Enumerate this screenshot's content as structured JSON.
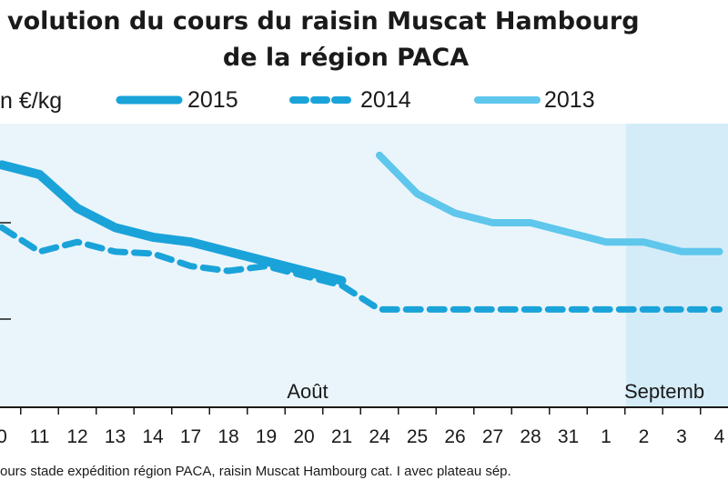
{
  "chart_data": {
    "type": "line",
    "title": "volution du cours du raisin Muscat Hambourg",
    "title_line2": "de la région PACA",
    "ylabel": "n €/kg",
    "source": "ours stade expédition région PACA, raisin Muscat Hambourg cat. I avec plateau sép.",
    "months": [
      "Août",
      "Septemb"
    ],
    "categories": [
      "0",
      "11",
      "12",
      "13",
      "14",
      "17",
      "18",
      "19",
      "20",
      "21",
      "24",
      "25",
      "26",
      "27",
      "28",
      "31",
      "1",
      "2",
      "3",
      "4"
    ],
    "grid": false,
    "legend_position": "top",
    "series": [
      {
        "name": "2015",
        "style": "solid-thick",
        "color": "#1aa3d9",
        "values": [
          2.6,
          2.5,
          2.15,
          1.95,
          1.85,
          1.8,
          1.7,
          1.6,
          1.5,
          1.4,
          null,
          null,
          null,
          null,
          null,
          null,
          null,
          null,
          null,
          null
        ]
      },
      {
        "name": "2014",
        "style": "dashed",
        "color": "#1aa3d9",
        "values": [
          1.95,
          1.7,
          1.8,
          1.7,
          1.68,
          1.55,
          1.5,
          1.55,
          1.45,
          1.35,
          1.1,
          1.1,
          1.1,
          1.1,
          1.1,
          1.1,
          1.1,
          1.1,
          1.1,
          1.1
        ]
      },
      {
        "name": "2013",
        "style": "solid-light",
        "color": "#5fc6ec",
        "values": [
          null,
          null,
          null,
          null,
          null,
          null,
          null,
          null,
          null,
          null,
          2.7,
          2.3,
          2.1,
          2.0,
          2.0,
          1.9,
          1.8,
          1.8,
          1.7,
          1.7
        ]
      }
    ]
  },
  "colors": {
    "plot_bg": "#eaf5fb",
    "september_bg": "#d4ecf8",
    "axis": "#1a1a1a",
    "text": "#1a1a1a"
  }
}
